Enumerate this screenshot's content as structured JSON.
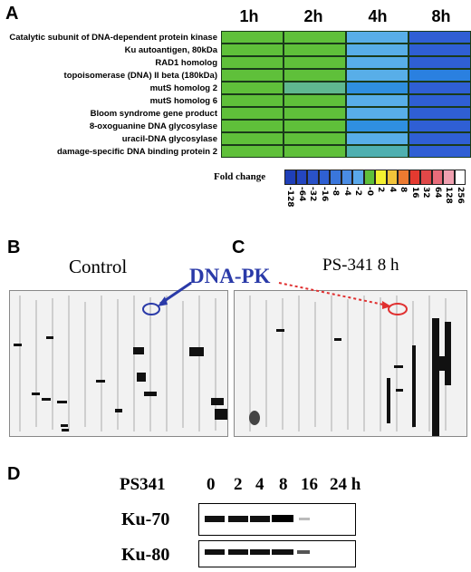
{
  "panels": {
    "A": "A",
    "B": "B",
    "C": "C",
    "D": "D"
  },
  "heatmap": {
    "timepoints": [
      "1h",
      "2h",
      "4h",
      "8h"
    ],
    "genes": [
      "Catalytic subunit of DNA-dependent protein kinase",
      "Ku autoantigen, 80kDa",
      "RAD1 homolog",
      "topoisomerase (DNA) II beta (180kDa)",
      "mutS homolog 2",
      "mutS homolog 6",
      "Bloom syndrome gene product",
      "8-oxoguanine DNA glycosylase",
      "uracil-DNA glycosylase",
      "damage-specific DNA binding protein 2"
    ],
    "cell_colors": [
      [
        "#5fc03a",
        "#5fc03a",
        "#58aee8",
        "#2f5fd4"
      ],
      [
        "#5fc03a",
        "#5fc03a",
        "#58aee8",
        "#2f5fd4"
      ],
      [
        "#5fc03a",
        "#5fc03a",
        "#58aee8",
        "#2f5fd4"
      ],
      [
        "#5fc03a",
        "#5fc03a",
        "#58aee8",
        "#2a80e0"
      ],
      [
        "#5fc03a",
        "#5fb890",
        "#2f8fe0",
        "#2f5fd4"
      ],
      [
        "#5fc03a",
        "#5fc03a",
        "#58aee8",
        "#2f5fd4"
      ],
      [
        "#5fc03a",
        "#5fc03a",
        "#58aee8",
        "#2f5fd4"
      ],
      [
        "#5fc03a",
        "#5fc03a",
        "#2f8fe0",
        "#2f5fd4"
      ],
      [
        "#5fc03a",
        "#5fc03a",
        "#58aee8",
        "#2f5fd4"
      ],
      [
        "#5fc03a",
        "#5fc03a",
        "#4fb0b0",
        "#2f5fd4"
      ]
    ]
  },
  "fold_change": {
    "label": "Fold change",
    "values": [
      "-128",
      "-64",
      "-32",
      "-16",
      "-8",
      "-4",
      "-2",
      "-0",
      "2",
      "4",
      "8",
      "16",
      "32",
      "64",
      "128",
      "256"
    ],
    "colors": [
      "#1f3fb8",
      "#2446c0",
      "#2a52c8",
      "#2f60d2",
      "#3a76dc",
      "#4a8ce4",
      "#5aa8ea",
      "#5fc03a",
      "#f4f030",
      "#f2c43a",
      "#ec7a30",
      "#e43a30",
      "#e04848",
      "#e86c7a",
      "#f0a0b0",
      "#ffffff"
    ]
  },
  "blots": {
    "control_label": "Control",
    "treated_label": "PS-341 8 h",
    "callout": "DNA-PK"
  },
  "western": {
    "treatment": "PS341",
    "lanes": [
      "0",
      "2",
      "4",
      "8",
      "16",
      "24 h"
    ],
    "proteins": [
      "Ku-70",
      "Ku-80"
    ]
  }
}
